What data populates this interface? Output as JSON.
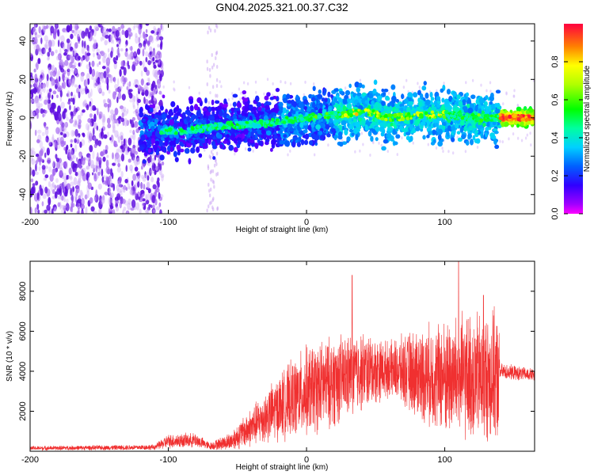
{
  "chart_data": {
    "title": "GN04.2025.321.00.37.C32",
    "panels": [
      {
        "type": "heatmap",
        "name": "spectrogram",
        "xlabel": "Height of straight line (km)",
        "ylabel": "Frequency (Hz)",
        "xlim": [
          -200,
          165
        ],
        "ylim": [
          -50,
          49
        ],
        "xticks": [
          -200,
          -100,
          0,
          100
        ],
        "yticks": [
          -40,
          -20,
          0,
          20,
          40
        ],
        "colorbar": {
          "label": "Normalized spectral amplitude",
          "range": [
            0,
            1
          ],
          "ticks": [
            "0.0",
            "0.2",
            "0.4",
            "0.6",
            "0.8"
          ]
        },
        "features": {
          "broadband_noise_region_km": [
            -200,
            -110
          ],
          "coherent_band_start_km": -120,
          "coherent_band_center_hz": [
            [
              -120,
              -6
            ],
            [
              -90,
              -7
            ],
            [
              -60,
              -4
            ],
            [
              -30,
              -3
            ],
            [
              0,
              0
            ],
            [
              30,
              2
            ],
            [
              40,
              4
            ],
            [
              60,
              0
            ],
            [
              80,
              1
            ],
            [
              100,
              2
            ],
            [
              120,
              0
            ],
            [
              140,
              0
            ],
            [
              165,
              0
            ]
          ],
          "peak_amplitude_region_km": [
            140,
            165
          ]
        }
      },
      {
        "type": "line",
        "name": "snr",
        "xlabel": "Height of straight line (km)",
        "ylabel": "SNR (10 * v/v)",
        "xlim": [
          -200,
          165
        ],
        "ylim": [
          0,
          9500
        ],
        "xticks": [
          -200,
          -100,
          0,
          100
        ],
        "yticks": [
          2000,
          4000,
          6000,
          8000
        ],
        "color": "#f03030",
        "envelope": [
          {
            "x": -200,
            "mean": 150,
            "amp": 120
          },
          {
            "x": -110,
            "mean": 200,
            "amp": 150
          },
          {
            "x": -100,
            "mean": 500,
            "amp": 400
          },
          {
            "x": -80,
            "mean": 550,
            "amp": 400
          },
          {
            "x": -70,
            "mean": 250,
            "amp": 200
          },
          {
            "x": -55,
            "mean": 500,
            "amp": 500
          },
          {
            "x": -40,
            "mean": 1200,
            "amp": 1100
          },
          {
            "x": -20,
            "mean": 2200,
            "amp": 1800
          },
          {
            "x": 0,
            "mean": 3000,
            "amp": 2500
          },
          {
            "x": 20,
            "mean": 3500,
            "amp": 2500
          },
          {
            "x": 40,
            "mean": 4000,
            "amp": 2200
          },
          {
            "x": 60,
            "mean": 4100,
            "amp": 1500
          },
          {
            "x": 80,
            "mean": 3900,
            "amp": 2500
          },
          {
            "x": 100,
            "mean": 3700,
            "amp": 3200
          },
          {
            "x": 120,
            "mean": 3700,
            "amp": 3600
          },
          {
            "x": 139,
            "mean": 3700,
            "amp": 3600
          },
          {
            "x": 140,
            "mean": 4000,
            "amp": 450
          },
          {
            "x": 165,
            "mean": 3800,
            "amp": 350
          }
        ],
        "peaks": [
          {
            "x": 33,
            "y": 8800
          },
          {
            "x": 110,
            "y": 9500
          },
          {
            "x": 128,
            "y": 7800
          }
        ]
      }
    ]
  }
}
